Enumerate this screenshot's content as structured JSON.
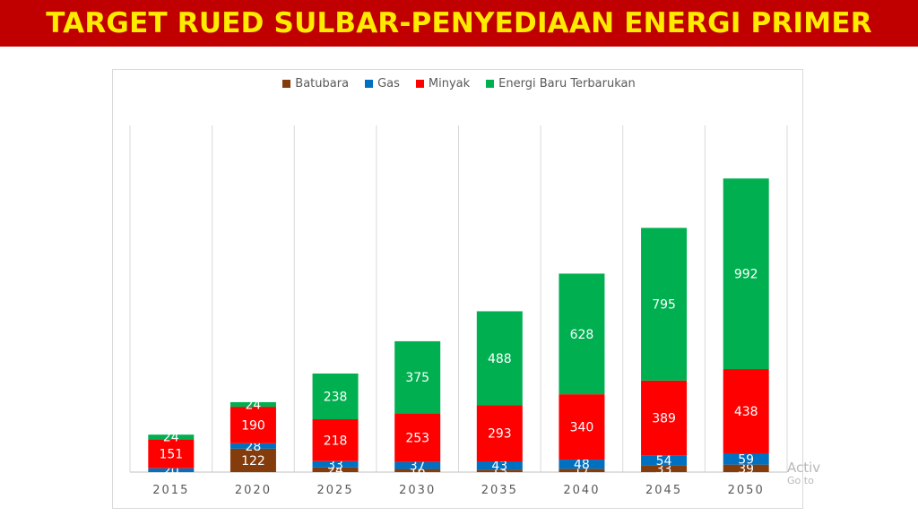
{
  "title": "TARGET RUED SULBAR-PENYEDIAAN ENERGI PRIMER",
  "chart_data": {
    "type": "bar",
    "stacked": true,
    "categories": [
      "2015",
      "2020",
      "2025",
      "2030",
      "2035",
      "2040",
      "2045",
      "2050"
    ],
    "series": [
      {
        "name": "Batubara",
        "color": "#843c0c",
        "values": [
          0,
          122,
          24,
          16,
          13,
          17,
          33,
          39
        ]
      },
      {
        "name": "Gas",
        "color": "#0070c0",
        "values": [
          20,
          28,
          33,
          37,
          43,
          48,
          54,
          59
        ]
      },
      {
        "name": "Minyak",
        "color": "#ff0000",
        "values": [
          151,
          190,
          218,
          253,
          293,
          340,
          389,
          438
        ]
      },
      {
        "name": "Energi Baru Terbarukan",
        "color": "#00b050",
        "values": [
          24,
          24,
          238,
          375,
          488,
          628,
          795,
          992
        ]
      }
    ],
    "grid": "vertical",
    "legend": "top"
  },
  "watermark": {
    "line1": "Activ",
    "line2": "Go to"
  }
}
